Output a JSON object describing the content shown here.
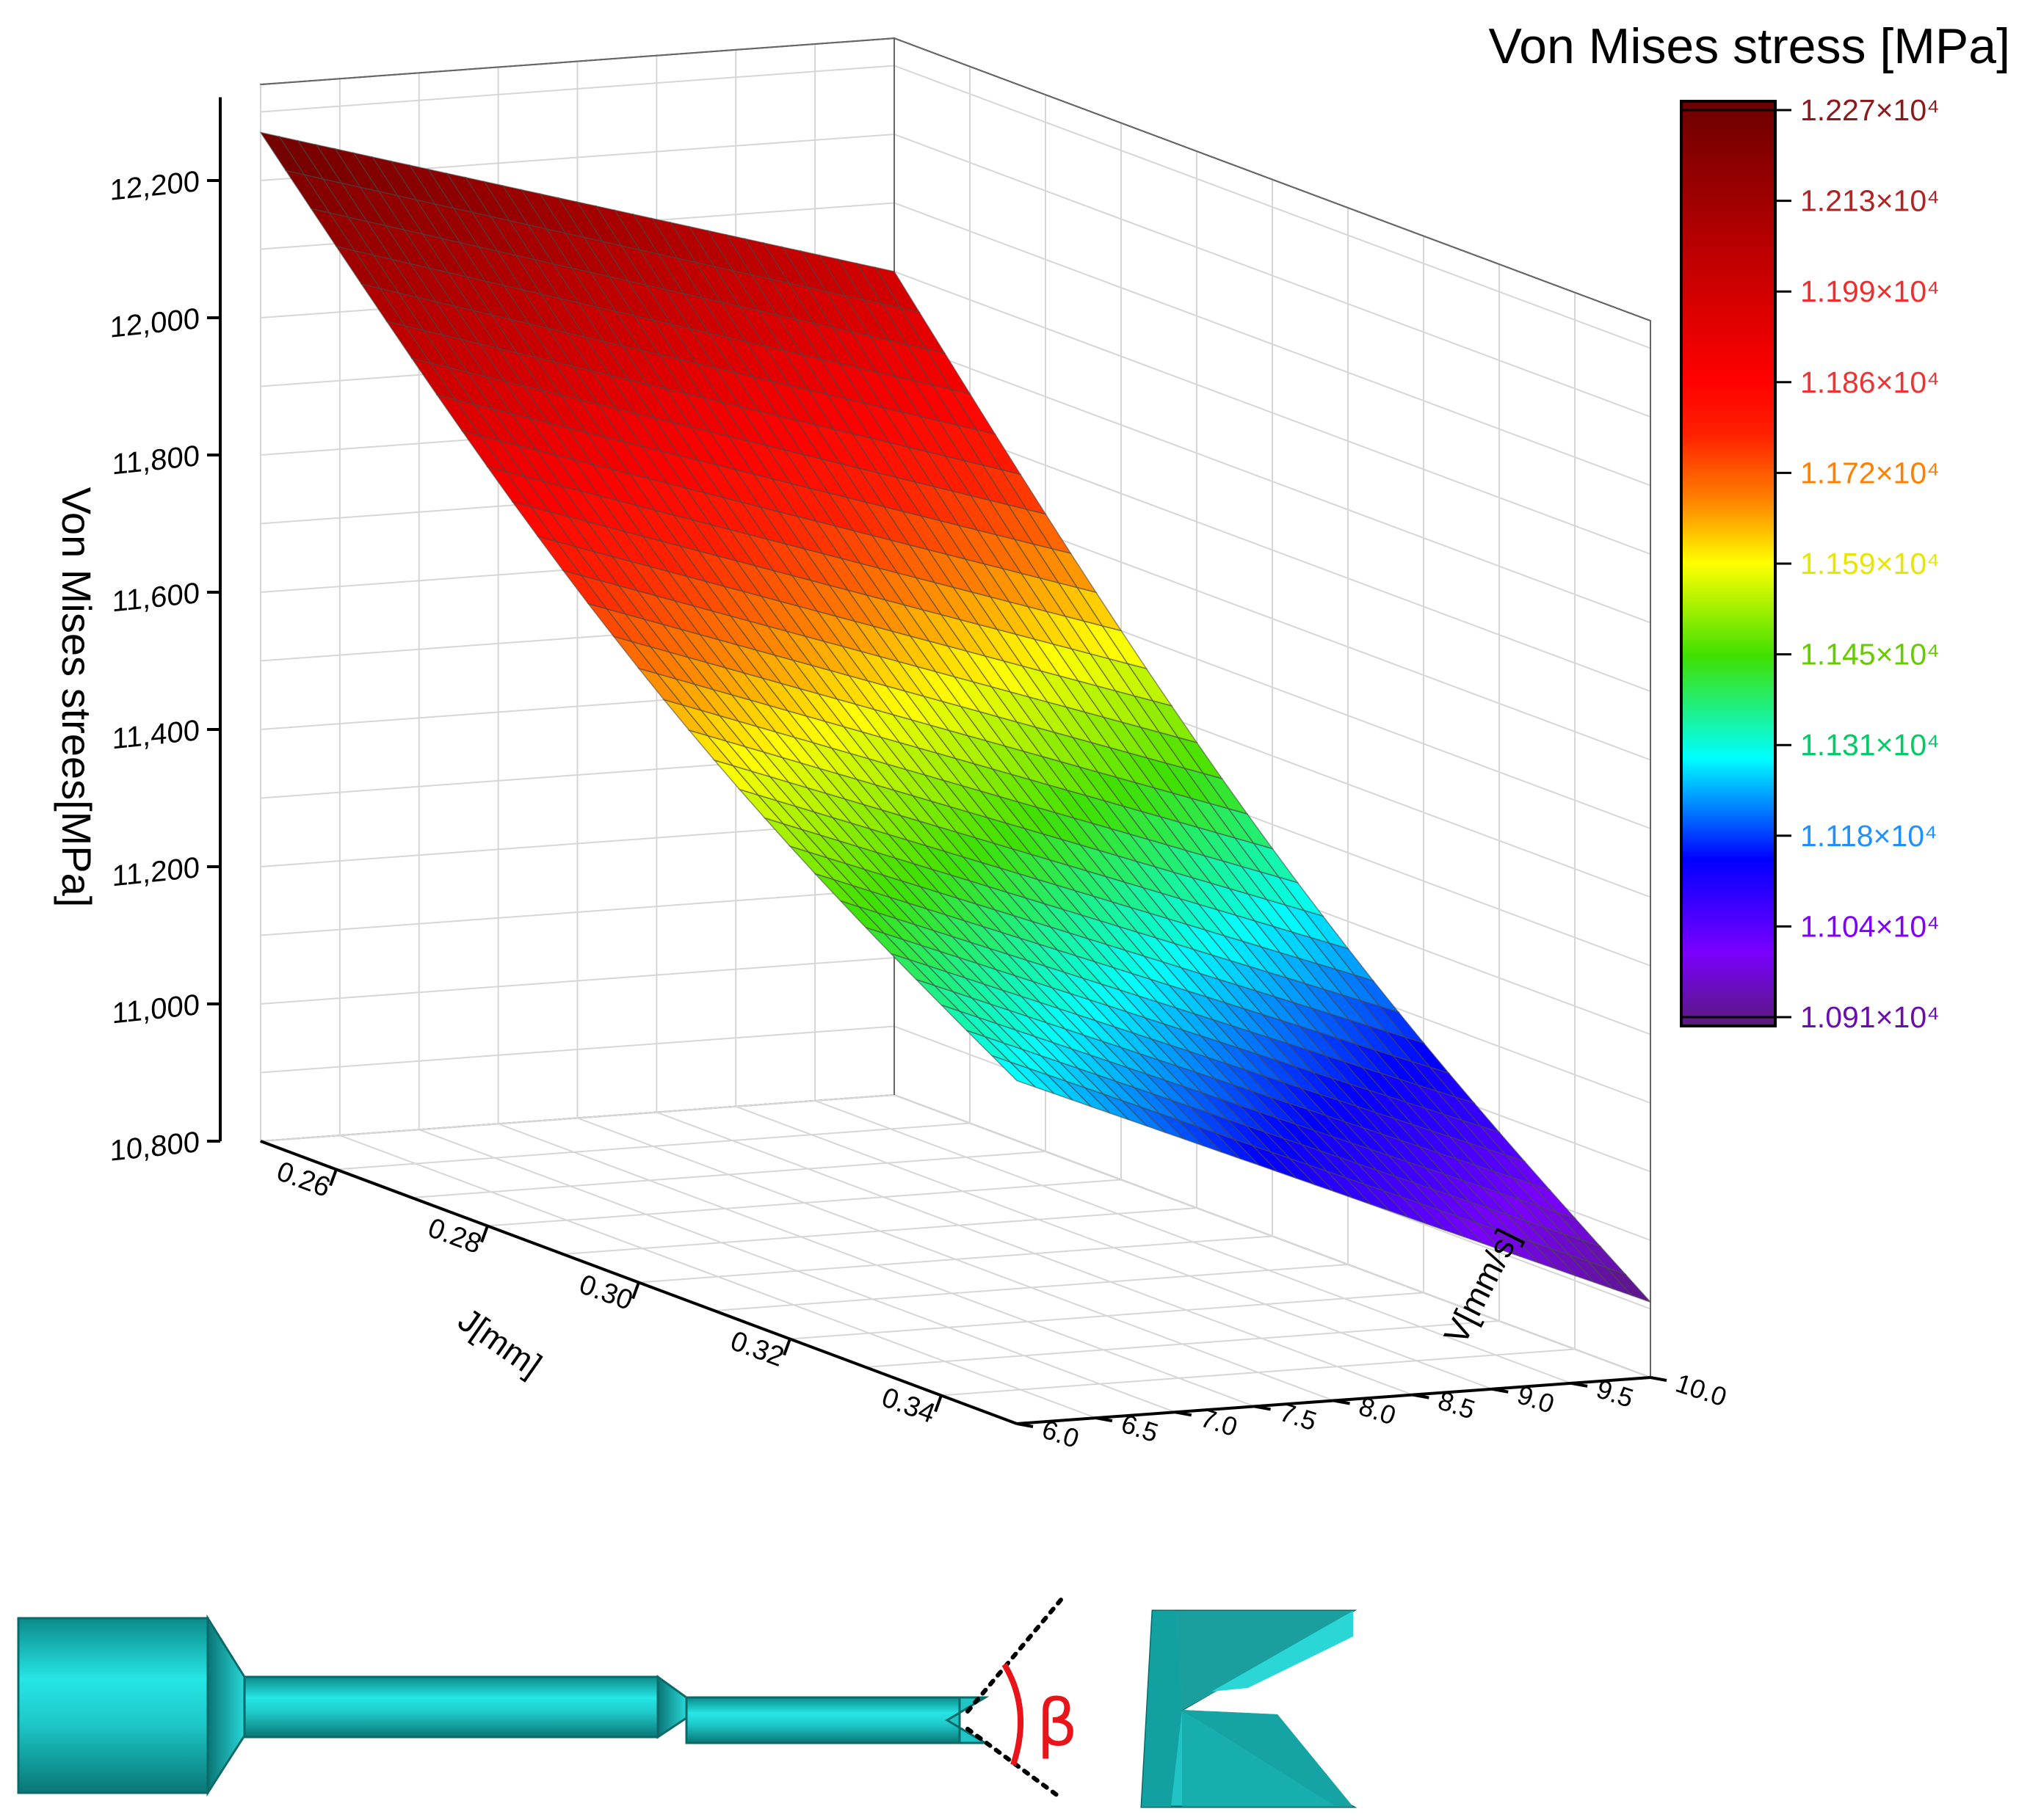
{
  "chart_data": {
    "type": "surface3d",
    "title": "",
    "colorbar": {
      "title": "Von Mises stress [MPa]",
      "min": 10910,
      "max": 12270,
      "ticks": [
        "1.227×10⁴",
        "1.213×10⁴",
        "1.199×10⁴",
        "1.186×10⁴",
        "1.172×10⁴",
        "1.159×10⁴",
        "1.145×10⁴",
        "1.131×10⁴",
        "1.118×10⁴",
        "1.104×10⁴",
        "1.091×10⁴"
      ],
      "tick_colors": [
        "#8b1a1a",
        "#b22222",
        "#ee2e2e",
        "#ee3333",
        "#ff7f00",
        "#e6e600",
        "#66cc00",
        "#00cc66",
        "#1e90ff",
        "#7f00ff",
        "#6a0dad"
      ]
    },
    "zaxis": {
      "label": "Von Mises strees[MPa]",
      "range": [
        10800,
        12300
      ],
      "ticks": [
        "12,200",
        "12,000",
        "11,800",
        "11,600",
        "11,400",
        "11,200",
        "11,000",
        "10,800"
      ]
    },
    "xaxis": {
      "label": "J[mm]",
      "range": [
        0.25,
        0.35
      ],
      "ticks": [
        "0.26",
        "0.28",
        "0.30",
        "0.32",
        "0.34"
      ]
    },
    "yaxis": {
      "label": "V[mm/s]",
      "range": [
        6.0,
        10.0
      ],
      "ticks": [
        "6.0",
        "6.5",
        "7.0",
        "7.5",
        "8.0",
        "8.5",
        "9.0",
        "9.5",
        "10.0"
      ]
    },
    "surface_corners": [
      {
        "J": 0.25,
        "V": 6.0,
        "stress": 12270
      },
      {
        "J": 0.25,
        "V": 10.0,
        "stress": 12000
      },
      {
        "J": 0.35,
        "V": 6.0,
        "stress": 11300
      },
      {
        "J": 0.35,
        "V": 10.0,
        "stress": 10910
      }
    ],
    "grid": true
  },
  "tool_illustration": {
    "angle_label": "β",
    "body_color": "#20c4c4",
    "angle_color": "#e8141a"
  }
}
